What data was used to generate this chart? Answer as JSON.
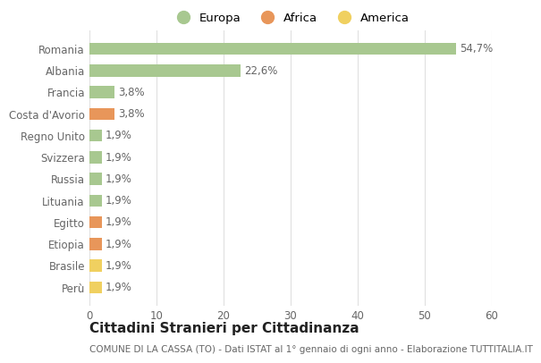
{
  "categories": [
    "Perù",
    "Brasile",
    "Etiopia",
    "Egitto",
    "Lituania",
    "Russia",
    "Svizzera",
    "Regno Unito",
    "Costa d'Avorio",
    "Francia",
    "Albania",
    "Romania"
  ],
  "values": [
    1.9,
    1.9,
    1.9,
    1.9,
    1.9,
    1.9,
    1.9,
    1.9,
    3.8,
    3.8,
    22.6,
    54.7
  ],
  "colors": [
    "#f0d060",
    "#f0d060",
    "#e8965a",
    "#e8965a",
    "#a8c890",
    "#a8c890",
    "#a8c890",
    "#a8c890",
    "#e8965a",
    "#a8c890",
    "#a8c890",
    "#a8c890"
  ],
  "labels": [
    "1,9%",
    "1,9%",
    "1,9%",
    "1,9%",
    "1,9%",
    "1,9%",
    "1,9%",
    "1,9%",
    "3,8%",
    "3,8%",
    "22,6%",
    "54,7%"
  ],
  "legend": [
    {
      "label": "Europa",
      "color": "#a8c890"
    },
    {
      "label": "Africa",
      "color": "#e8965a"
    },
    {
      "label": "America",
      "color": "#f0d060"
    }
  ],
  "xlim": [
    0,
    60
  ],
  "xticks": [
    0,
    10,
    20,
    30,
    40,
    50,
    60
  ],
  "title": "Cittadini Stranieri per Cittadinanza",
  "subtitle": "COMUNE DI LA CASSA (TO) - Dati ISTAT al 1° gennaio di ogni anno - Elaborazione TUTTITALIA.IT",
  "bg_color": "#ffffff",
  "grid_color": "#e0e0e0",
  "bar_height": 0.55,
  "title_fontsize": 11,
  "subtitle_fontsize": 7.5,
  "label_fontsize": 8.5,
  "tick_fontsize": 8.5,
  "legend_fontsize": 9.5
}
